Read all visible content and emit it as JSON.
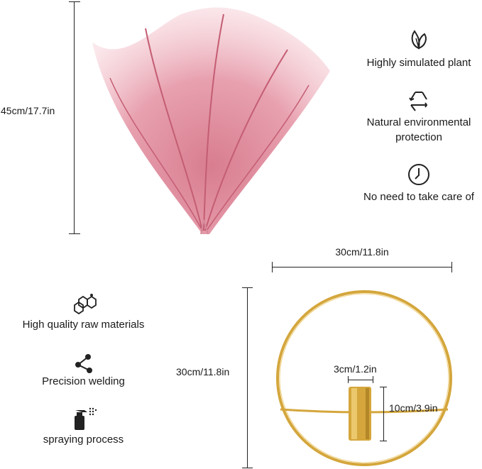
{
  "dimensions": {
    "plant_height": "45cm/17.7in",
    "ring_width": "30cm/11.8in",
    "ring_height": "30cm/11.8in",
    "holder_width": "3cm/1.2in",
    "holder_height": "10cm/3.9in"
  },
  "features_right": [
    {
      "icon": "leaf-icon",
      "label": "Highly simulated plant"
    },
    {
      "icon": "recycle-icon",
      "label_lines": [
        "Natural environmental",
        "protection"
      ]
    },
    {
      "icon": "clock-icon",
      "label": "No need to take care of"
    }
  ],
  "features_left": [
    {
      "icon": "hexagon-icon",
      "label": "High quality raw materials"
    },
    {
      "icon": "welding-icon",
      "label": "Precision welding"
    },
    {
      "icon": "spray-bottle-icon",
      "label": "spraying process"
    }
  ],
  "colors": {
    "plume_pink": "#e0899a",
    "plume_light": "#f6c9d1",
    "gold": "#d4a63c",
    "line": "#222222"
  }
}
